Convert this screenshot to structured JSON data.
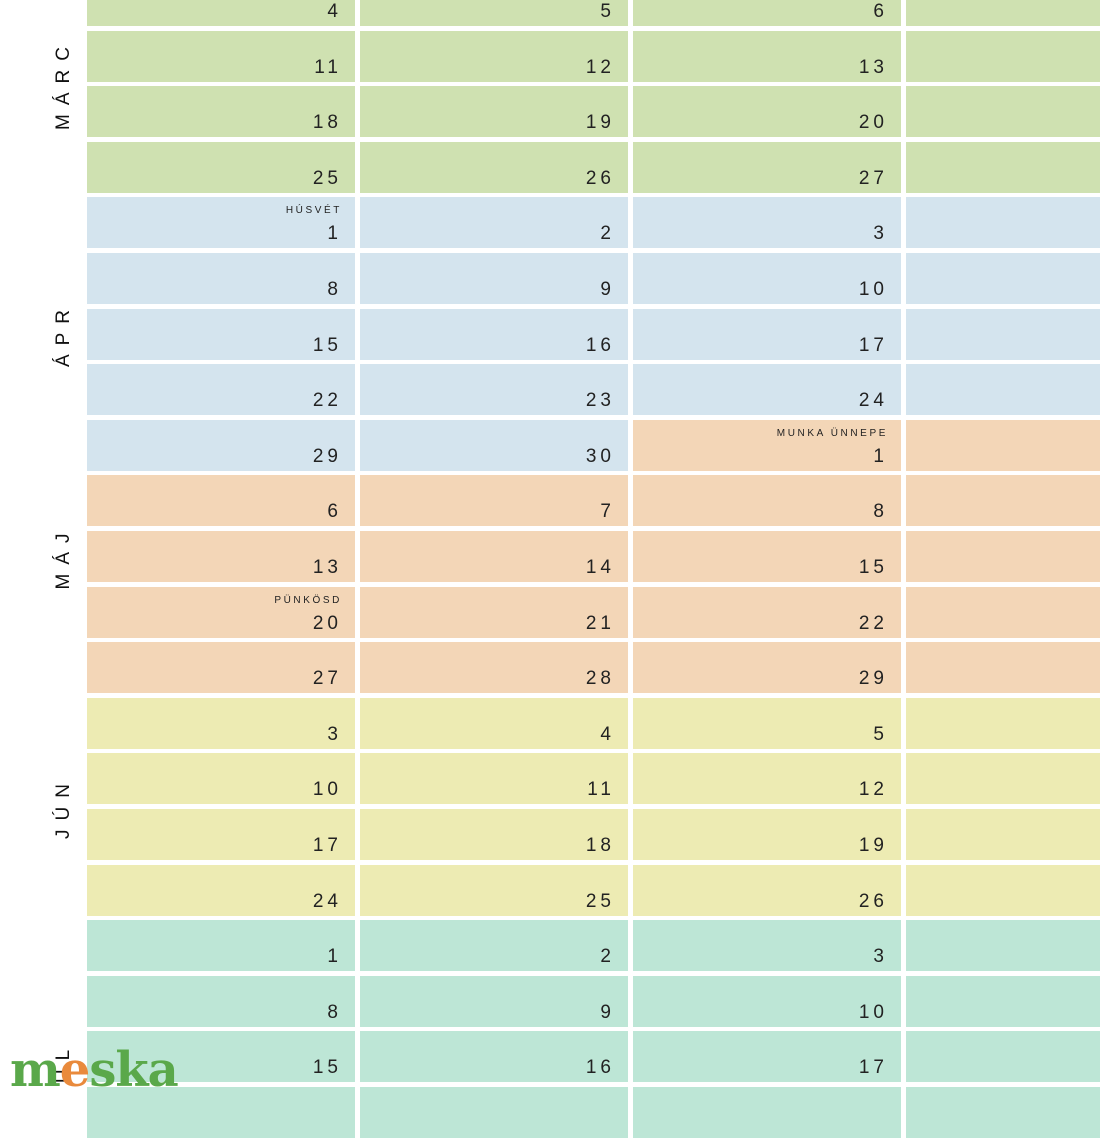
{
  "months": [
    {
      "label": "MÁRC",
      "color": "#cfe1b1",
      "rows": [
        0,
        3
      ]
    },
    {
      "label": "ÁPR",
      "color": "#d4e4ee",
      "rows": [
        4,
        8
      ]
    },
    {
      "label": "MÁJ",
      "color": "#f3d6b7",
      "rows": [
        8,
        12
      ]
    },
    {
      "label": "JÚN",
      "color": "#edebb3",
      "rows": [
        13,
        16
      ]
    },
    {
      "label": "ÚL",
      "color": "#bde6d6",
      "rows": [
        17,
        20
      ]
    }
  ],
  "weeks": [
    {
      "days": [
        {
          "num": "4",
          "month": 0
        },
        {
          "num": "5",
          "month": 0
        },
        {
          "num": "6",
          "month": 0
        },
        {
          "num": "",
          "month": 0
        }
      ]
    },
    {
      "days": [
        {
          "num": "11",
          "month": 0
        },
        {
          "num": "12",
          "month": 0
        },
        {
          "num": "13",
          "month": 0
        },
        {
          "num": "",
          "month": 0
        }
      ]
    },
    {
      "days": [
        {
          "num": "18",
          "month": 0
        },
        {
          "num": "19",
          "month": 0
        },
        {
          "num": "20",
          "month": 0
        },
        {
          "num": "",
          "month": 0
        }
      ]
    },
    {
      "days": [
        {
          "num": "25",
          "month": 0
        },
        {
          "num": "26",
          "month": 0
        },
        {
          "num": "27",
          "month": 0
        },
        {
          "num": "",
          "month": 0
        }
      ]
    },
    {
      "days": [
        {
          "num": "1",
          "month": 1,
          "holiday": "HÚSVÉT"
        },
        {
          "num": "2",
          "month": 1
        },
        {
          "num": "3",
          "month": 1
        },
        {
          "num": "",
          "month": 1
        }
      ]
    },
    {
      "days": [
        {
          "num": "8",
          "month": 1
        },
        {
          "num": "9",
          "month": 1
        },
        {
          "num": "10",
          "month": 1
        },
        {
          "num": "",
          "month": 1
        }
      ]
    },
    {
      "days": [
        {
          "num": "15",
          "month": 1
        },
        {
          "num": "16",
          "month": 1
        },
        {
          "num": "17",
          "month": 1
        },
        {
          "num": "",
          "month": 1
        }
      ]
    },
    {
      "days": [
        {
          "num": "22",
          "month": 1
        },
        {
          "num": "23",
          "month": 1
        },
        {
          "num": "24",
          "month": 1
        },
        {
          "num": "",
          "month": 1
        }
      ]
    },
    {
      "days": [
        {
          "num": "29",
          "month": 1
        },
        {
          "num": "30",
          "month": 1
        },
        {
          "num": "1",
          "month": 2,
          "holiday": "MUNKA ÜNNEPE"
        },
        {
          "num": "",
          "month": 2
        }
      ]
    },
    {
      "days": [
        {
          "num": "6",
          "month": 2
        },
        {
          "num": "7",
          "month": 2
        },
        {
          "num": "8",
          "month": 2
        },
        {
          "num": "",
          "month": 2
        }
      ]
    },
    {
      "days": [
        {
          "num": "13",
          "month": 2
        },
        {
          "num": "14",
          "month": 2
        },
        {
          "num": "15",
          "month": 2
        },
        {
          "num": "",
          "month": 2
        }
      ]
    },
    {
      "days": [
        {
          "num": "20",
          "month": 2,
          "holiday": "PÜNKÖSD"
        },
        {
          "num": "21",
          "month": 2
        },
        {
          "num": "22",
          "month": 2
        },
        {
          "num": "",
          "month": 2
        }
      ]
    },
    {
      "days": [
        {
          "num": "27",
          "month": 2
        },
        {
          "num": "28",
          "month": 2
        },
        {
          "num": "29",
          "month": 2
        },
        {
          "num": "",
          "month": 2
        }
      ]
    },
    {
      "days": [
        {
          "num": "3",
          "month": 3
        },
        {
          "num": "4",
          "month": 3
        },
        {
          "num": "5",
          "month": 3
        },
        {
          "num": "",
          "month": 3
        }
      ]
    },
    {
      "days": [
        {
          "num": "10",
          "month": 3
        },
        {
          "num": "11",
          "month": 3
        },
        {
          "num": "12",
          "month": 3
        },
        {
          "num": "",
          "month": 3
        }
      ]
    },
    {
      "days": [
        {
          "num": "17",
          "month": 3
        },
        {
          "num": "18",
          "month": 3
        },
        {
          "num": "19",
          "month": 3
        },
        {
          "num": "",
          "month": 3
        }
      ]
    },
    {
      "days": [
        {
          "num": "24",
          "month": 3
        },
        {
          "num": "25",
          "month": 3
        },
        {
          "num": "26",
          "month": 3
        },
        {
          "num": "",
          "month": 3
        }
      ]
    },
    {
      "days": [
        {
          "num": "1",
          "month": 4
        },
        {
          "num": "2",
          "month": 4
        },
        {
          "num": "3",
          "month": 4
        },
        {
          "num": "",
          "month": 4
        }
      ]
    },
    {
      "days": [
        {
          "num": "8",
          "month": 4
        },
        {
          "num": "9",
          "month": 4
        },
        {
          "num": "10",
          "month": 4
        },
        {
          "num": "",
          "month": 4
        }
      ]
    },
    {
      "days": [
        {
          "num": "15",
          "month": 4
        },
        {
          "num": "16",
          "month": 4
        },
        {
          "num": "17",
          "month": 4
        },
        {
          "num": "",
          "month": 4
        }
      ]
    },
    {
      "days": [
        {
          "num": "",
          "month": 4
        },
        {
          "num": "",
          "month": 4
        },
        {
          "num": "",
          "month": 4
        },
        {
          "num": "",
          "month": 4
        }
      ]
    }
  ],
  "logo": {
    "part1": "m",
    "accent": "e",
    "part2": "ska",
    "accent_color": "#e98a3c",
    "brand_color": "#5aa84a"
  }
}
